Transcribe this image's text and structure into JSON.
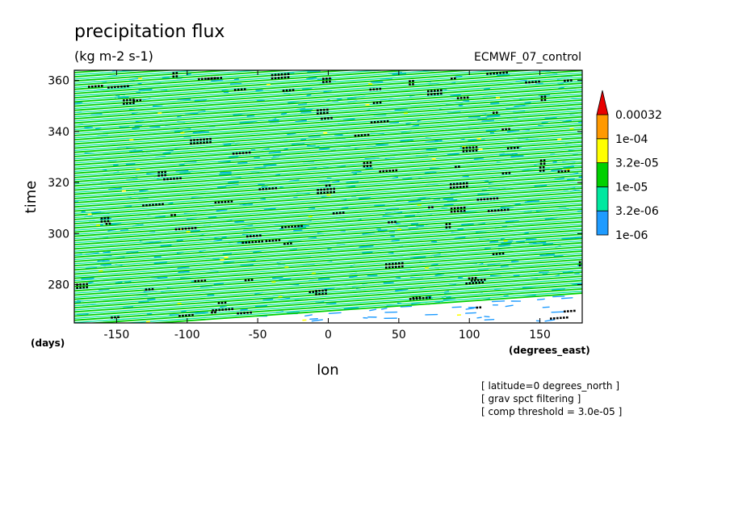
{
  "chart_data": {
    "type": "heatmap",
    "title": "precipitation flux",
    "units": "(kg m-2 s-1)",
    "dataset": "ECMWF_07_control",
    "xlabel": "lon",
    "ylabel": "time",
    "x_units": "(degrees_east)",
    "y_units": "(days)",
    "xlim": [
      -180,
      180
    ],
    "ylim": [
      265,
      364
    ],
    "x_ticks": [
      -150,
      -100,
      -50,
      0,
      50,
      100,
      150
    ],
    "y_ticks": [
      280,
      300,
      320,
      340,
      360
    ],
    "x_tick_labels": [
      "-150",
      "-100",
      "-50",
      "0",
      "50",
      "100",
      "150"
    ],
    "y_tick_labels": [
      "280",
      "300",
      "320",
      "340",
      "360"
    ],
    "colorbar": {
      "labels": [
        "0.00032",
        "1e-04",
        "3.2e-05",
        "1e-05",
        "3.2e-06",
        "1e-06"
      ],
      "levels": [
        1e-06,
        3.2e-06,
        1e-05,
        3.2e-05,
        0.0001,
        0.00032
      ],
      "colors": [
        "#1e9bff",
        "#00e8a0",
        "#00d000",
        "#ffff00",
        "#ff9900",
        "#e80000"
      ]
    },
    "threshold_marker_color": "#000000",
    "notes": [
      "[ latitude=0 degrees_north ]",
      "[ grav spct filtering ]",
      "[ comp threshold = 3.0e-05 ]"
    ]
  }
}
